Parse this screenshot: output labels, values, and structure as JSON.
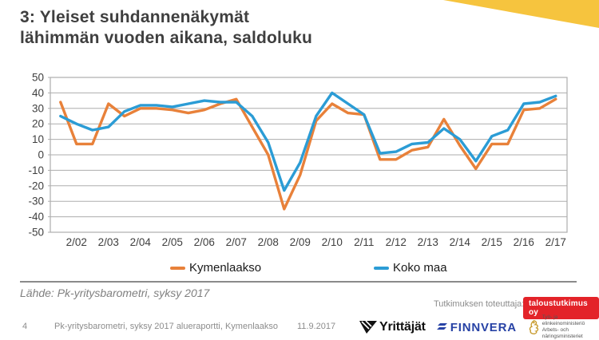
{
  "page": {
    "title_line1": "3: Yleiset suhdannenäkymät",
    "title_line2": "lähimmän vuoden aikana, saldoluku",
    "source_note": "Lähde: Pk-yritysbarometri, syksy 2017",
    "page_number": "4",
    "footer_doc": "Pk-yritysbarometri, syksy 2017 alueraportti, Kymenlaakso",
    "footer_date": "11.9.2017",
    "research_by_label": "Tutkimuksen toteuttaja:",
    "research_badge": "taloustutkimus oy"
  },
  "logos": {
    "yrittajat": "Yrittäjät",
    "finnvera": "FINNVERA",
    "tem_line1": "Työ- ja elinkeinoministeriö",
    "tem_line2": "Arbets- och näringsministeriet"
  },
  "colors": {
    "accent_yellow": "#F6C43E",
    "kymenlaakso_orange": "#E8813A",
    "koko_maa_blue": "#2B9CD5",
    "grid_gray": "#ADADAD",
    "badge_red": "#E32329",
    "finnvera_blue": "#2742A5",
    "tem_gold": "#C79A2C"
  },
  "chart_data": {
    "type": "line",
    "title": "",
    "xlabel": "",
    "ylabel": "",
    "ylim": [
      -50,
      50
    ],
    "ytick_step": 10,
    "grid": true,
    "legend_position": "bottom",
    "categories": [
      "1/02",
      "2/02",
      "1/03",
      "2/03",
      "1/04",
      "2/04",
      "1/05",
      "2/05",
      "1/06",
      "2/06",
      "1/07",
      "2/07",
      "1/08",
      "2/08",
      "1/09",
      "2/09",
      "1/10",
      "2/10",
      "1/11",
      "2/11",
      "1/12",
      "2/12",
      "1/13",
      "2/13",
      "1/14",
      "2/14",
      "1/15",
      "2/15",
      "1/16",
      "2/16",
      "1/17",
      "2/17"
    ],
    "x_tick_labels": [
      "2/02",
      "2/03",
      "2/04",
      "2/05",
      "2/06",
      "2/07",
      "2/08",
      "2/09",
      "2/10",
      "2/11",
      "2/12",
      "2/13",
      "2/14",
      "2/15",
      "2/16",
      "2/17"
    ],
    "series": [
      {
        "name": "Kymenlaakso",
        "color": "#E8813A",
        "values": [
          34,
          7,
          7,
          33,
          25,
          30,
          30,
          29,
          27,
          29,
          33,
          36,
          18,
          0,
          -35,
          -13,
          22,
          33,
          27,
          26,
          -3,
          -3,
          3,
          5,
          23,
          6,
          -9,
          7,
          7,
          29,
          30,
          36
        ]
      },
      {
        "name": "Koko maa",
        "color": "#2B9CD5",
        "values": [
          25,
          20,
          16,
          18,
          28,
          32,
          32,
          31,
          33,
          35,
          34,
          34,
          25,
          8,
          -23,
          -5,
          25,
          40,
          33,
          26,
          1,
          2,
          7,
          8,
          17,
          10,
          -4,
          12,
          16,
          33,
          34,
          38
        ]
      }
    ]
  }
}
